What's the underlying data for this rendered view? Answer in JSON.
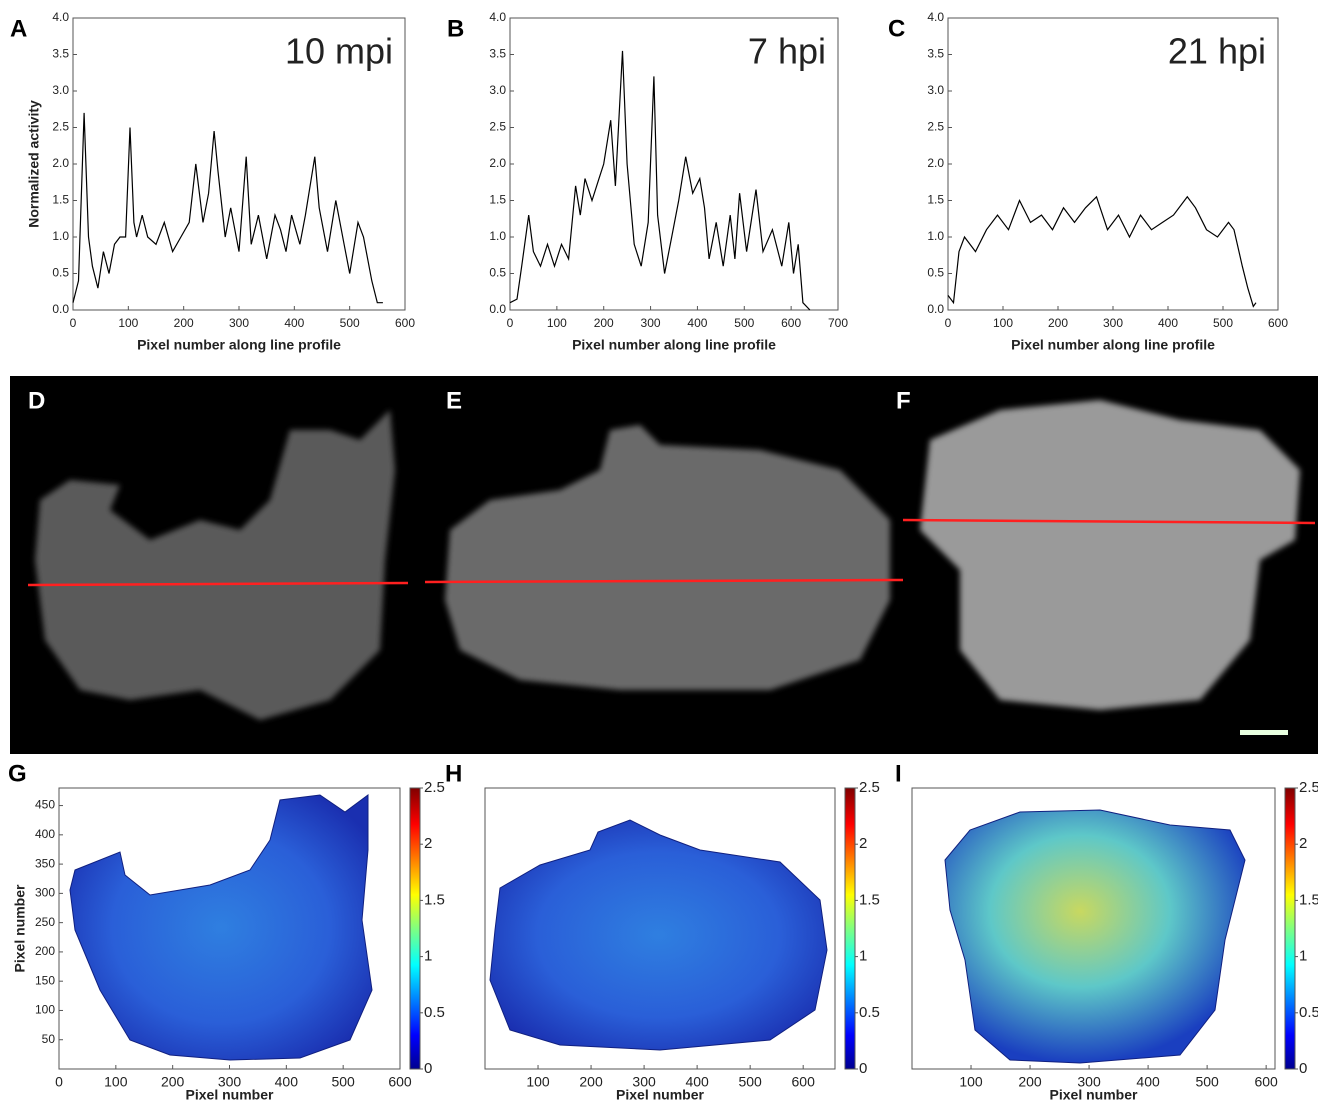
{
  "chart_data": [
    {
      "type": "line",
      "label": "A",
      "annotation": "10 mpi",
      "xlabel": "Pixel number along line profile",
      "ylabel": "Normalized activity",
      "color": "#000000",
      "x": [
        0,
        10,
        20,
        28,
        35,
        45,
        55,
        65,
        75,
        85,
        95,
        103,
        110,
        115,
        125,
        135,
        150,
        165,
        180,
        195,
        210,
        222,
        235,
        245,
        255,
        262,
        275,
        285,
        300,
        313,
        322,
        335,
        350,
        365,
        375,
        385,
        395,
        410,
        420,
        437,
        445,
        460,
        475,
        490,
        500,
        515,
        525,
        540,
        550,
        560
      ],
      "values": [
        0.1,
        0.4,
        2.7,
        1.0,
        0.6,
        0.3,
        0.8,
        0.5,
        0.9,
        1.0,
        1.0,
        2.5,
        1.2,
        1.0,
        1.3,
        1.0,
        0.9,
        1.2,
        0.8,
        1.0,
        1.2,
        2.0,
        1.2,
        1.6,
        2.45,
        1.9,
        1.0,
        1.4,
        0.8,
        2.1,
        0.9,
        1.3,
        0.7,
        1.3,
        1.1,
        0.8,
        1.3,
        0.9,
        1.3,
        2.1,
        1.4,
        0.8,
        1.5,
        0.9,
        0.5,
        1.2,
        1.0,
        0.4,
        0.1,
        0.1
      ],
      "xlim": [
        0,
        600
      ],
      "xticks": [
        0,
        100,
        200,
        300,
        400,
        500,
        600
      ],
      "ylim": [
        0,
        4
      ],
      "yticks": [
        {
          "value": 0,
          "label": "0.0"
        },
        0.5,
        {
          "value": 1,
          "label": "1.0"
        },
        1.5,
        {
          "value": 2,
          "label": "2.0"
        },
        2.5,
        {
          "value": 3,
          "label": "3.0"
        },
        3.5,
        {
          "value": 4,
          "label": "4.0"
        }
      ]
    },
    {
      "type": "line",
      "label": "B",
      "annotation": "7 hpi",
      "xlabel": "Pixel number along line profile",
      "color": "#000000",
      "x": [
        0,
        15,
        25,
        40,
        50,
        65,
        80,
        95,
        110,
        125,
        140,
        150,
        160,
        175,
        190,
        200,
        215,
        225,
        240,
        250,
        265,
        280,
        295,
        307,
        315,
        330,
        345,
        360,
        375,
        390,
        405,
        415,
        425,
        440,
        455,
        470,
        480,
        490,
        505,
        525,
        540,
        560,
        580,
        595,
        605,
        615,
        625,
        640
      ],
      "values": [
        0.1,
        0.15,
        0.6,
        1.3,
        0.8,
        0.6,
        0.9,
        0.6,
        0.9,
        0.7,
        1.7,
        1.3,
        1.8,
        1.5,
        1.8,
        2.0,
        2.6,
        1.7,
        3.55,
        2.0,
        0.9,
        0.6,
        1.2,
        3.2,
        1.3,
        0.5,
        1.0,
        1.5,
        2.1,
        1.6,
        1.8,
        1.4,
        0.7,
        1.2,
        0.6,
        1.3,
        0.7,
        1.6,
        0.8,
        1.65,
        0.8,
        1.1,
        0.6,
        1.2,
        0.5,
        0.9,
        0.1,
        0.0
      ],
      "xlim": [
        0,
        700
      ],
      "xticks": [
        0,
        100,
        200,
        300,
        400,
        500,
        600,
        700
      ],
      "ylim": [
        0,
        4
      ],
      "yticks": [
        {
          "value": 0,
          "label": "0.0"
        },
        0.5,
        {
          "value": 1,
          "label": "1.0"
        },
        1.5,
        {
          "value": 2,
          "label": "2.0"
        },
        2.5,
        {
          "value": 3,
          "label": "3.0"
        },
        3.5,
        {
          "value": 4,
          "label": "4.0"
        }
      ]
    },
    {
      "type": "line",
      "label": "C",
      "annotation": "21 hpi",
      "xlabel": "Pixel number along line profile",
      "color": "#000000",
      "x": [
        0,
        10,
        20,
        30,
        50,
        70,
        90,
        110,
        130,
        150,
        170,
        190,
        210,
        230,
        250,
        270,
        290,
        310,
        330,
        350,
        370,
        390,
        410,
        435,
        450,
        470,
        490,
        510,
        520,
        535,
        545,
        555,
        560
      ],
      "values": [
        0.2,
        0.1,
        0.8,
        1.0,
        0.8,
        1.1,
        1.3,
        1.1,
        1.5,
        1.2,
        1.3,
        1.1,
        1.4,
        1.2,
        1.4,
        1.55,
        1.1,
        1.3,
        1.0,
        1.3,
        1.1,
        1.2,
        1.3,
        1.55,
        1.4,
        1.1,
        1.0,
        1.2,
        1.1,
        0.6,
        0.3,
        0.05,
        0.1
      ],
      "xlim": [
        0,
        600
      ],
      "xticks": [
        0,
        100,
        200,
        300,
        400,
        500,
        600
      ],
      "ylim": [
        0,
        4
      ],
      "yticks": [
        {
          "value": 0,
          "label": "0.0"
        },
        0.5,
        {
          "value": 1,
          "label": "1.0"
        },
        1.5,
        {
          "value": 2,
          "label": "2.0"
        },
        2.5,
        {
          "value": 3,
          "label": "3.0"
        },
        3.5,
        {
          "value": 4,
          "label": "4.0"
        }
      ]
    },
    {
      "type": "heatmap",
      "label": "G",
      "xlabel": "Pixel number",
      "ylabel": "Pixel number",
      "xlim": [
        0,
        600
      ],
      "xticks": [
        0,
        100,
        200,
        300,
        400,
        500,
        600
      ],
      "ylim": [
        0,
        480
      ],
      "yticks": [
        50,
        100,
        150,
        200,
        250,
        300,
        350,
        400,
        450
      ],
      "clim": [
        0,
        2.5
      ],
      "cticks": [
        0,
        0.5,
        1,
        1.5,
        2,
        2.5
      ]
    },
    {
      "type": "heatmap",
      "label": "H",
      "xlabel": "Pixel number",
      "xlim": [
        0,
        660
      ],
      "xticks": [
        100,
        200,
        300,
        400,
        500,
        600
      ],
      "clim": [
        0,
        2.5
      ],
      "cticks": [
        0,
        0.5,
        1,
        1.5,
        2,
        2.5
      ]
    },
    {
      "type": "heatmap",
      "label": "I",
      "xlabel": "Pixel number",
      "xlim": [
        0,
        615
      ],
      "xticks": [
        100,
        200,
        300,
        400,
        500,
        600
      ],
      "clim": [
        0,
        2.5
      ],
      "cticks": [
        0,
        0.5,
        1,
        1.5,
        2,
        2.5
      ]
    }
  ],
  "images": [
    {
      "label": "D"
    },
    {
      "label": "E"
    },
    {
      "label": "F"
    }
  ]
}
